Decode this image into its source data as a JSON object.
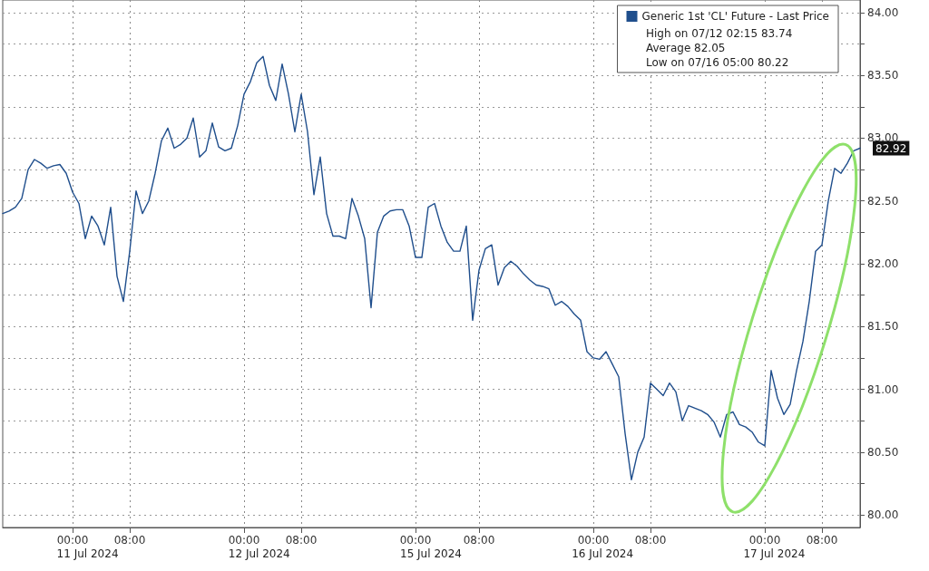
{
  "chart_data": {
    "type": "line",
    "categories": [
      null,
      null,
      null,
      null,
      null,
      null,
      null,
      null,
      null,
      null,
      null,
      "00:00",
      null,
      null,
      null,
      null,
      null,
      null,
      null,
      null,
      "08:00",
      null,
      null,
      null,
      null,
      null,
      null,
      null,
      null,
      null,
      null,
      null,
      null,
      null,
      null,
      null,
      null,
      null,
      "00:00",
      null,
      null,
      null,
      null,
      null,
      null,
      null,
      null,
      "08:00",
      null,
      null,
      null,
      null,
      null,
      null,
      null,
      null,
      null,
      null,
      null,
      null,
      null,
      null,
      null,
      null,
      null,
      "00:00",
      null,
      null,
      null,
      null,
      null,
      null,
      null,
      null,
      null,
      "08:00",
      null,
      null,
      null,
      null,
      null,
      null,
      null,
      null,
      null,
      null,
      null,
      null,
      null,
      null,
      null,
      null,
      null,
      "00:00",
      null,
      null,
      null,
      null,
      null,
      null,
      null,
      null,
      "08:00",
      null,
      null,
      null,
      null,
      null,
      null,
      null,
      null,
      null,
      null,
      null,
      null,
      null,
      null,
      null,
      null,
      null,
      "00:00",
      null,
      null,
      null,
      null,
      null,
      null,
      null,
      null,
      "08:00",
      null,
      null,
      null,
      null,
      null,
      null
    ],
    "series": [
      {
        "name": "Generic 1st 'CL' Future - Last Price",
        "color": "#1f4e8c",
        "values": [
          82.4,
          82.42,
          82.45,
          82.52,
          82.75,
          82.83,
          82.8,
          82.76,
          82.78,
          82.79,
          82.72,
          82.57,
          82.48,
          82.2,
          82.38,
          82.3,
          82.15,
          82.45,
          81.9,
          81.7,
          82.1,
          82.58,
          82.4,
          82.5,
          82.72,
          82.98,
          83.08,
          82.92,
          82.95,
          83.0,
          83.16,
          82.85,
          82.9,
          83.12,
          82.93,
          82.9,
          82.92,
          83.1,
          83.35,
          83.45,
          83.6,
          83.65,
          83.42,
          83.3,
          83.59,
          83.35,
          83.05,
          83.35,
          83.05,
          82.55,
          82.85,
          82.4,
          82.22,
          82.22,
          82.2,
          82.52,
          82.38,
          82.2,
          81.65,
          82.25,
          82.38,
          82.42,
          82.43,
          82.43,
          82.3,
          82.05,
          82.05,
          82.45,
          82.48,
          82.3,
          82.17,
          82.1,
          82.1,
          82.3,
          81.55,
          81.95,
          82.12,
          82.15,
          81.83,
          81.97,
          82.02,
          81.98,
          81.92,
          81.87,
          81.83,
          81.82,
          81.8,
          81.67,
          81.7,
          81.66,
          81.6,
          81.55,
          81.3,
          81.25,
          81.24,
          81.3,
          81.2,
          81.1,
          80.65,
          80.28,
          80.5,
          80.62,
          81.05,
          81.0,
          80.95,
          81.05,
          80.98,
          80.75,
          80.87,
          80.85,
          80.83,
          80.8,
          80.74,
          80.62,
          80.8,
          80.82,
          80.72,
          80.7,
          80.66,
          80.58,
          80.55,
          81.15,
          80.93,
          80.8,
          80.88,
          81.15,
          81.38,
          81.7,
          82.1,
          82.15,
          82.5,
          82.76,
          82.72,
          82.8,
          82.9,
          82.92
        ],
        "value_labels": [
          null,
          null,
          null,
          null,
          null,
          null,
          null,
          null,
          null,
          null,
          null,
          null,
          null,
          null,
          null,
          null,
          null,
          null,
          null,
          null,
          null,
          null,
          null,
          null,
          null,
          null,
          null,
          null,
          null,
          null,
          null,
          null,
          null,
          null,
          null,
          null,
          null,
          null,
          null,
          null,
          null,
          null,
          null,
          null,
          null,
          null,
          null,
          null,
          null,
          null,
          null,
          null,
          null,
          null,
          null,
          null,
          null,
          null,
          null,
          null,
          null,
          null,
          null,
          null,
          null,
          null,
          null,
          null,
          null,
          null,
          null,
          null,
          null,
          null,
          null,
          null,
          null,
          null,
          null,
          null,
          null,
          null,
          null,
          null,
          null,
          null,
          null,
          null,
          null,
          null,
          null,
          null,
          null,
          null,
          null,
          null,
          null,
          null,
          null,
          null,
          null,
          null,
          null,
          null,
          null,
          null,
          null,
          null,
          null,
          null,
          null,
          null,
          null,
          null,
          null,
          null,
          null,
          null,
          null,
          null,
          null,
          null,
          null,
          null,
          null,
          null,
          null,
          null,
          null,
          null,
          null,
          null,
          null,
          null,
          null,
          "82.92"
        ]
      }
    ],
    "ylim": [
      79.9,
      84.1
    ],
    "yticks": [
      {
        "value": 80,
        "label": "80.00"
      },
      {
        "value": 80.25,
        "label": null
      },
      {
        "value": 80.5,
        "label": "80.50"
      },
      {
        "value": 80.75,
        "label": null
      },
      {
        "value": 81,
        "label": "81.00"
      },
      {
        "value": 81.25,
        "label": null
      },
      {
        "value": 81.5,
        "label": "81.50"
      },
      {
        "value": 81.75,
        "label": null
      },
      {
        "value": 82,
        "label": "82.00"
      },
      {
        "value": 82.25,
        "label": null
      },
      {
        "value": 82.5,
        "label": "82.50"
      },
      {
        "value": 82.75,
        "label": null
      },
      {
        "value": 83,
        "label": "83.00"
      },
      {
        "value": 83.25,
        "label": null
      },
      {
        "value": 83.5,
        "label": "83.50"
      },
      {
        "value": 83.75,
        "label": null
      },
      {
        "value": 84,
        "label": "84.00"
      }
    ],
    "grid": true,
    "legend": "top right",
    "marker": "none",
    "line_style": "solid",
    "annotations": [
      "High on 07/12 02:15 83.74",
      "Average 82.05",
      "Low on 07/16 05:00 80.22",
      "11 Jul 2024",
      "12 Jul 2024",
      "15 Jul 2024",
      "16 Jul 2024",
      "17 Jul 2024"
    ]
  }
}
